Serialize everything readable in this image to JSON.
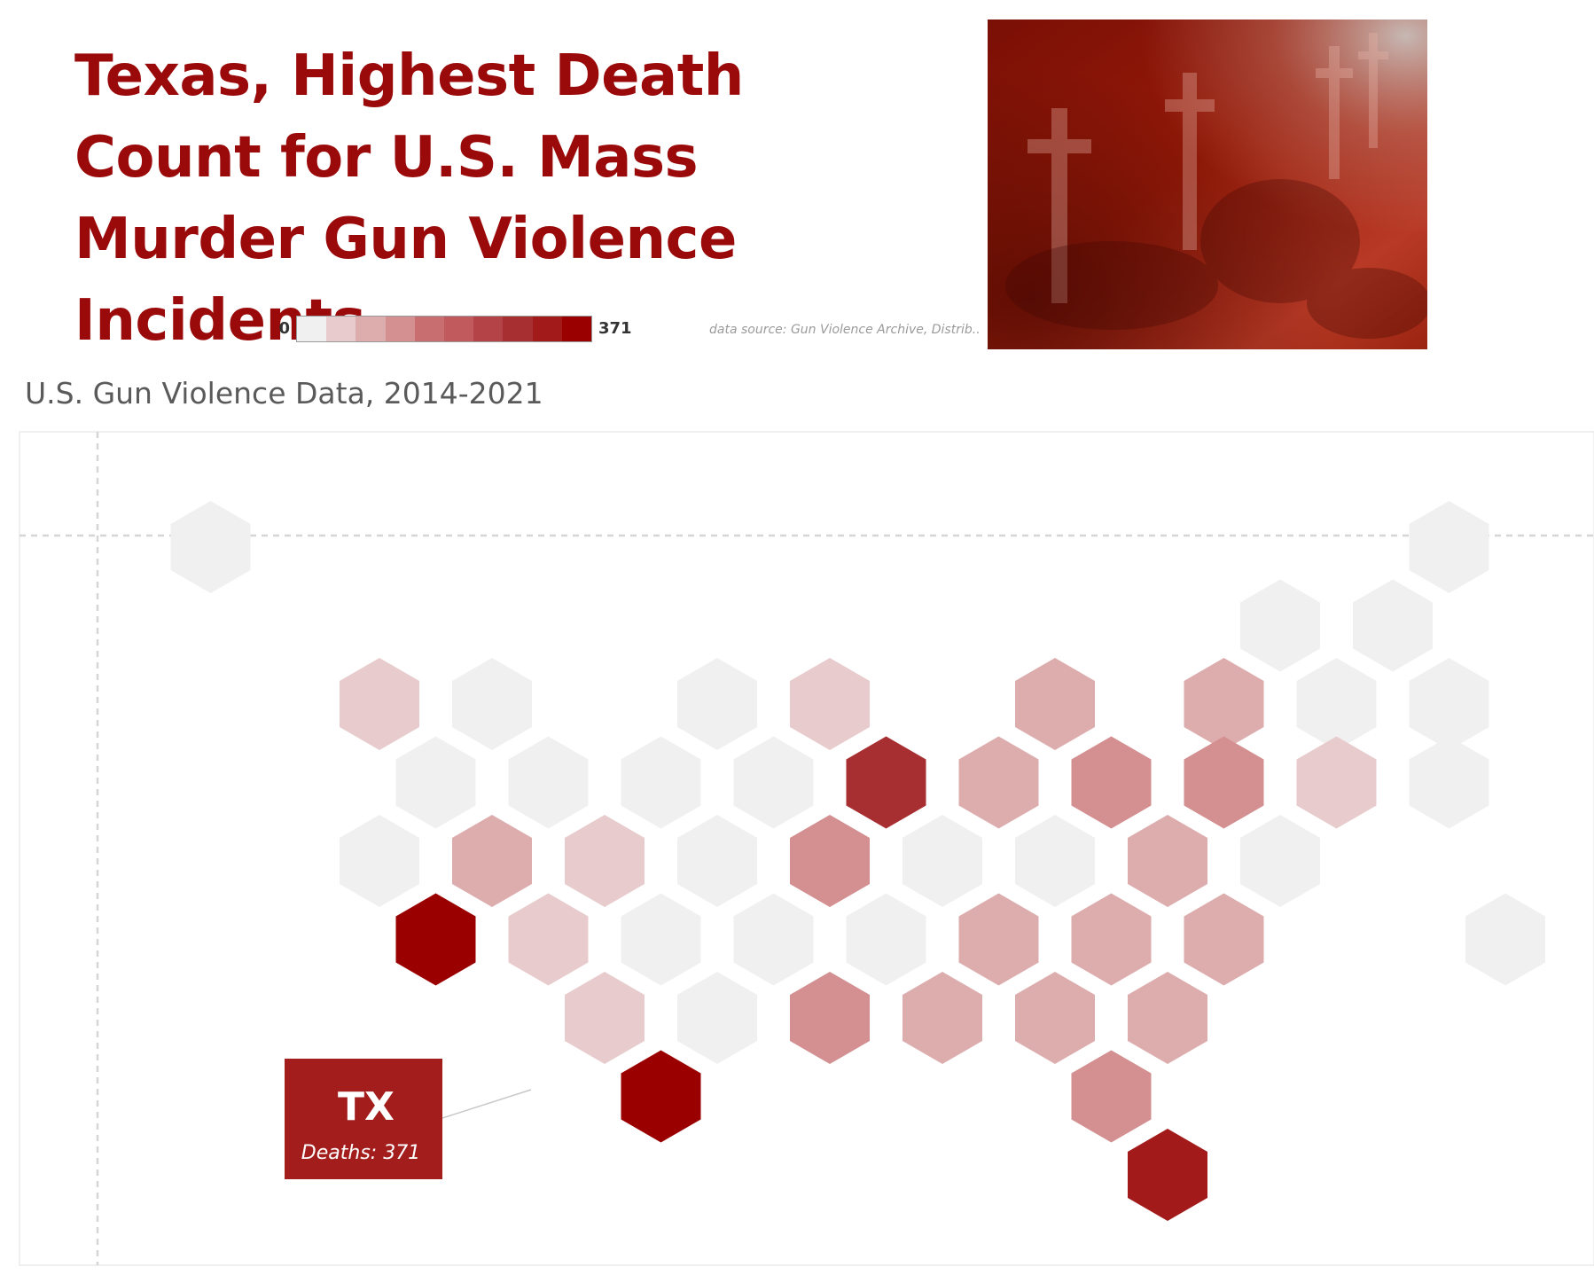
{
  "title": "Texas, Highest Death Count for U.S. Mass Murder Gun Violence Incidents",
  "subtitle": "U.S. Gun Violence Data, 2014-2021",
  "source_note": "data source: Gun Violence Archive, Distrib..",
  "legend": {
    "min_label": "0",
    "max_label": "371",
    "colors": [
      "#f0f0f0",
      "#e8cccd",
      "#ddadae",
      "#d48f90",
      "#c96e70",
      "#c05a5c",
      "#b34346",
      "#a82f31",
      "#a31a1a",
      "#9b0000"
    ]
  },
  "colors": {
    "title": "#9b0a0a",
    "callout_bg": "#a31d1d",
    "empty": "#f0f0f0"
  },
  "callout": {
    "state": "TX",
    "label": "Deaths: 371"
  },
  "photo": {
    "icon": "memorial-photo-icon"
  },
  "chart_data": {
    "type": "heatmap",
    "color_scale": {
      "min": 0,
      "max": 371
    },
    "grid_columns": 24,
    "grid_rows": 9,
    "cells": [
      {
        "col": 1,
        "row": 0,
        "bin": 0
      },
      {
        "col": 23,
        "row": 0,
        "bin": 0
      },
      {
        "col": 20,
        "row": 1,
        "bin": 0
      },
      {
        "col": 22,
        "row": 1,
        "bin": 0
      },
      {
        "col": 4,
        "row": 2,
        "bin": 1
      },
      {
        "col": 6,
        "row": 2,
        "bin": 0
      },
      {
        "col": 10,
        "row": 2,
        "bin": 0
      },
      {
        "col": 12,
        "row": 2,
        "bin": 1
      },
      {
        "col": 16,
        "row": 2,
        "bin": 2
      },
      {
        "col": 19,
        "row": 2,
        "bin": 2
      },
      {
        "col": 21,
        "row": 2,
        "bin": 0
      },
      {
        "col": 23,
        "row": 2,
        "bin": 0
      },
      {
        "col": 5,
        "row": 3,
        "bin": 0
      },
      {
        "col": 7,
        "row": 3,
        "bin": 0
      },
      {
        "col": 9,
        "row": 3,
        "bin": 0
      },
      {
        "col": 11,
        "row": 3,
        "bin": 0
      },
      {
        "col": 13,
        "row": 3,
        "bin": 7
      },
      {
        "col": 15,
        "row": 3,
        "bin": 2
      },
      {
        "col": 17,
        "row": 3,
        "bin": 3
      },
      {
        "col": 19,
        "row": 3,
        "bin": 3
      },
      {
        "col": 21,
        "row": 3,
        "bin": 1
      },
      {
        "col": 23,
        "row": 3,
        "bin": 0
      },
      {
        "col": 4,
        "row": 4,
        "bin": 0
      },
      {
        "col": 6,
        "row": 4,
        "bin": 2
      },
      {
        "col": 8,
        "row": 4,
        "bin": 1
      },
      {
        "col": 10,
        "row": 4,
        "bin": 0
      },
      {
        "col": 12,
        "row": 4,
        "bin": 3
      },
      {
        "col": 14,
        "row": 4,
        "bin": 0
      },
      {
        "col": 16,
        "row": 4,
        "bin": 0
      },
      {
        "col": 18,
        "row": 4,
        "bin": 2
      },
      {
        "col": 20,
        "row": 4,
        "bin": 0
      },
      {
        "col": 5,
        "row": 5,
        "bin": 9
      },
      {
        "col": 7,
        "row": 5,
        "bin": 1
      },
      {
        "col": 9,
        "row": 5,
        "bin": 0
      },
      {
        "col": 11,
        "row": 5,
        "bin": 0
      },
      {
        "col": 13,
        "row": 5,
        "bin": 0
      },
      {
        "col": 15,
        "row": 5,
        "bin": 2
      },
      {
        "col": 17,
        "row": 5,
        "bin": 2
      },
      {
        "col": 19,
        "row": 5,
        "bin": 2
      },
      {
        "col": 24,
        "row": 5,
        "bin": 0
      },
      {
        "col": 8,
        "row": 6,
        "bin": 1
      },
      {
        "col": 10,
        "row": 6,
        "bin": 0
      },
      {
        "col": 12,
        "row": 6,
        "bin": 3
      },
      {
        "col": 14,
        "row": 6,
        "bin": 2
      },
      {
        "col": 16,
        "row": 6,
        "bin": 2
      },
      {
        "col": 18,
        "row": 6,
        "bin": 2
      },
      {
        "col": 9,
        "row": 7,
        "bin": 9,
        "state": "TX",
        "deaths": 371
      },
      {
        "col": 17,
        "row": 7,
        "bin": 3
      },
      {
        "col": 18,
        "row": 8,
        "bin": 8
      }
    ]
  }
}
